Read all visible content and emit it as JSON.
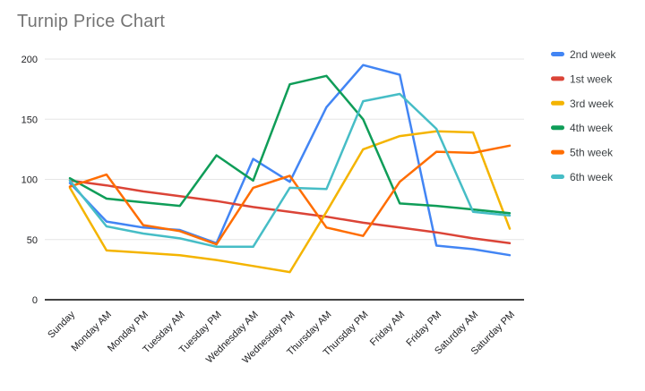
{
  "chart": {
    "title": "Turnip Price Chart"
  },
  "chart_data": {
    "type": "line",
    "title": "Turnip Price Chart",
    "categories": [
      "Sunday",
      "Monday AM",
      "Monday PM",
      "Tuesday AM",
      "Tuesday PM",
      "Wednesday AM",
      "Wednesday PM",
      "Thursday AM",
      "Thursday PM",
      "Friday AM",
      "Friday PM",
      "Saturday AM",
      "Saturday PM"
    ],
    "series": [
      {
        "name": "2nd week",
        "color": "#4285F4",
        "values": [
          97,
          65,
          60,
          58,
          47,
          117,
          98,
          160,
          195,
          187,
          45,
          42,
          37
        ]
      },
      {
        "name": "1st week",
        "color": "#DB4437",
        "values": [
          99,
          95,
          90,
          86,
          82,
          77,
          73,
          69,
          64,
          60,
          56,
          51,
          47
        ]
      },
      {
        "name": "3rd week",
        "color": "#F4B400",
        "values": [
          93,
          41,
          39,
          37,
          33,
          28,
          23,
          73,
          125,
          136,
          140,
          139,
          59
        ]
      },
      {
        "name": "4th week",
        "color": "#0F9D58",
        "values": [
          101,
          84,
          81,
          78,
          120,
          99,
          179,
          186,
          150,
          80,
          78,
          75,
          72
        ]
      },
      {
        "name": "5th week",
        "color": "#FF6D01",
        "values": [
          94,
          104,
          62,
          57,
          46,
          93,
          103,
          60,
          53,
          98,
          123,
          122,
          128
        ]
      },
      {
        "name": "6th week",
        "color": "#46BDC6",
        "values": [
          99,
          61,
          55,
          51,
          44,
          44,
          93,
          92,
          165,
          171,
          142,
          73,
          70
        ]
      }
    ],
    "y_ticks": [
      0,
      50,
      100,
      150,
      200
    ],
    "ylim": [
      0,
      200
    ],
    "xlabel": "",
    "ylabel": "",
    "grid": true,
    "legend_position": "right",
    "x_label_rotation": -45,
    "styles": {
      "grid_color": "#e6e6e6",
      "axis_color": "#424242",
      "title_color": "#757575",
      "tick_color": "#202124",
      "legend_text_color": "#3c4043",
      "background": "#ffffff"
    }
  }
}
